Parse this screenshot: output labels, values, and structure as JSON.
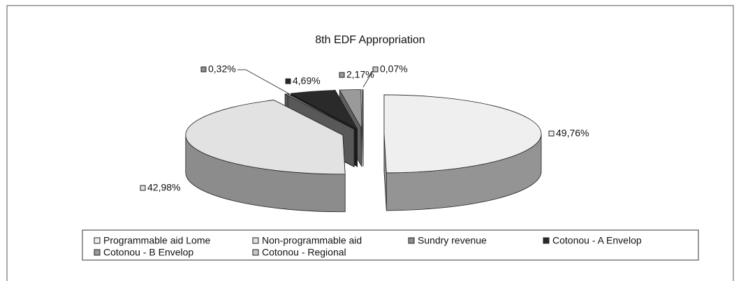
{
  "chart_data": {
    "type": "pie",
    "title": "8th EDF Appropriation",
    "categories": [
      "Programmable aid Lome",
      "Non-programmable aid",
      "Sundry revenue",
      "Cotonou - A Envelop",
      "Cotonou - B Envelop",
      "Cotonou - Regional"
    ],
    "values": [
      49.76,
      42.98,
      0.32,
      4.69,
      2.17,
      0.07
    ],
    "value_labels": [
      "49,76%",
      "42,98%",
      "0,32%",
      "4,69%",
      "2,17%",
      "0,07%"
    ],
    "colors": [
      "#efefef",
      "#e2e2e2",
      "#8e8e8e",
      "#2a2a2a",
      "#9a9a9a",
      "#c8c8c8"
    ],
    "legend": "bottom"
  }
}
